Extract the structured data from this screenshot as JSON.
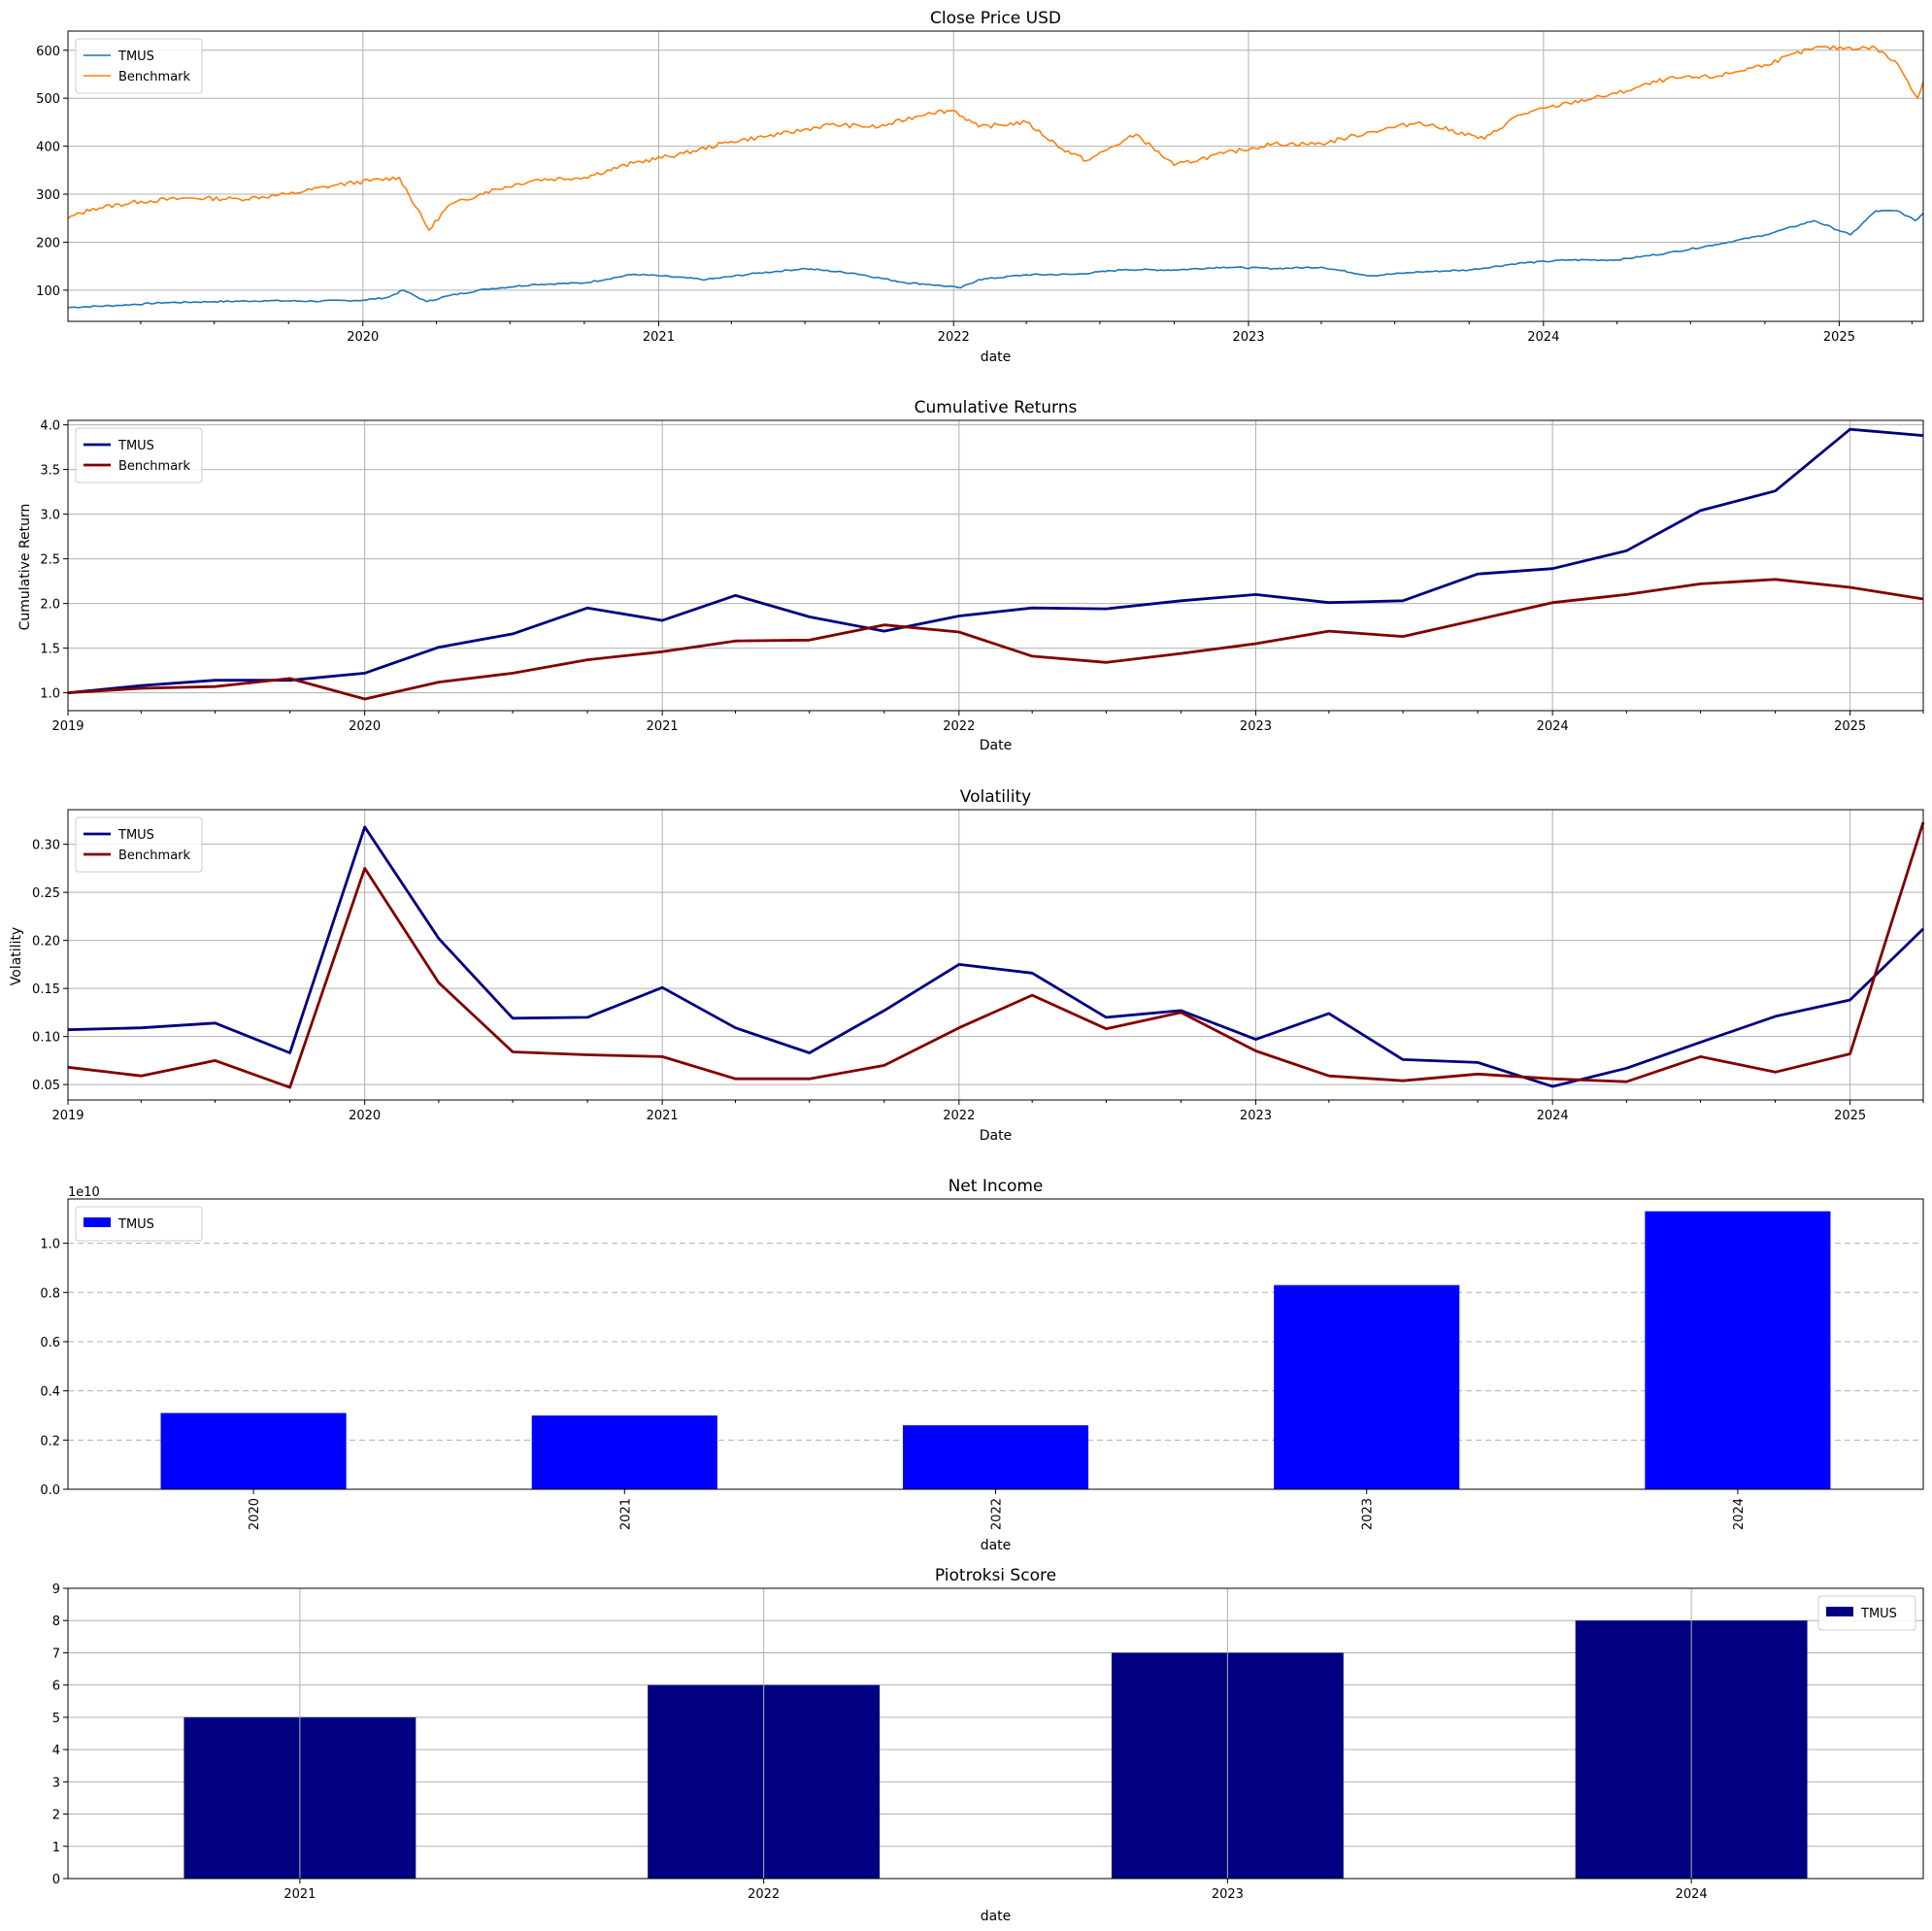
{
  "chart_data": [
    {
      "type": "line",
      "title": "Close Price USD",
      "xlabel": "date",
      "ylabel": "",
      "x_range": [
        "2019-01-01",
        "2025-04-15"
      ],
      "ylim": [
        35,
        640
      ],
      "yticks": [
        100,
        200,
        300,
        400,
        500,
        600
      ],
      "xticks": [
        "2020",
        "2021",
        "2022",
        "2023",
        "2024",
        "2025"
      ],
      "grid": true,
      "legend": "top-left",
      "colors": [
        "#1f77b4",
        "#ff7f0e"
      ],
      "series": [
        {
          "name": "TMUS",
          "points": [
            [
              "2019-01-01",
              64
            ],
            [
              "2019-03-01",
              68
            ],
            [
              "2019-05-01",
              74
            ],
            [
              "2019-07-01",
              76
            ],
            [
              "2019-09-01",
              78
            ],
            [
              "2019-11-01",
              77
            ],
            [
              "2020-01-01",
              79
            ],
            [
              "2020-02-01",
              85
            ],
            [
              "2020-02-20",
              100
            ],
            [
              "2020-03-20",
              76
            ],
            [
              "2020-04-15",
              88
            ],
            [
              "2020-06-01",
              102
            ],
            [
              "2020-08-01",
              112
            ],
            [
              "2020-10-01",
              115
            ],
            [
              "2020-12-01",
              133
            ],
            [
              "2021-01-01",
              130
            ],
            [
              "2021-03-01",
              122
            ],
            [
              "2021-05-01",
              135
            ],
            [
              "2021-07-01",
              145
            ],
            [
              "2021-09-01",
              135
            ],
            [
              "2021-11-01",
              116
            ],
            [
              "2021-12-01",
              112
            ],
            [
              "2022-01-10",
              105
            ],
            [
              "2022-02-01",
              122
            ],
            [
              "2022-04-01",
              132
            ],
            [
              "2022-06-01",
              133
            ],
            [
              "2022-08-01",
              143
            ],
            [
              "2022-10-01",
              142
            ],
            [
              "2022-12-01",
              148
            ],
            [
              "2023-02-01",
              145
            ],
            [
              "2023-04-01",
              148
            ],
            [
              "2023-06-01",
              130
            ],
            [
              "2023-08-01",
              138
            ],
            [
              "2023-10-01",
              142
            ],
            [
              "2023-12-01",
              156
            ],
            [
              "2024-02-01",
              163
            ],
            [
              "2024-04-01",
              163
            ],
            [
              "2024-06-01",
              177
            ],
            [
              "2024-08-01",
              195
            ],
            [
              "2024-10-01",
              215
            ],
            [
              "2024-12-01",
              245
            ],
            [
              "2025-01-15",
              215
            ],
            [
              "2025-02-15",
              265
            ],
            [
              "2025-03-15",
              265
            ],
            [
              "2025-04-05",
              245
            ],
            [
              "2025-04-15",
              260
            ]
          ]
        },
        {
          "name": "Benchmark",
          "points": [
            [
              "2019-01-01",
              250
            ],
            [
              "2019-02-01",
              270
            ],
            [
              "2019-04-01",
              285
            ],
            [
              "2019-06-01",
              292
            ],
            [
              "2019-08-01",
              290
            ],
            [
              "2019-10-01",
              300
            ],
            [
              "2019-12-01",
              320
            ],
            [
              "2020-02-15",
              335
            ],
            [
              "2020-03-23",
              225
            ],
            [
              "2020-04-15",
              275
            ],
            [
              "2020-06-01",
              305
            ],
            [
              "2020-08-01",
              330
            ],
            [
              "2020-10-01",
              335
            ],
            [
              "2020-12-01",
              365
            ],
            [
              "2021-02-01",
              385
            ],
            [
              "2021-04-01",
              410
            ],
            [
              "2021-06-01",
              425
            ],
            [
              "2021-08-01",
              445
            ],
            [
              "2021-10-01",
              440
            ],
            [
              "2021-12-01",
              470
            ],
            [
              "2022-01-01",
              475
            ],
            [
              "2022-02-01",
              440
            ],
            [
              "2022-04-01",
              450
            ],
            [
              "2022-05-15",
              395
            ],
            [
              "2022-06-15",
              370
            ],
            [
              "2022-08-15",
              425
            ],
            [
              "2022-10-01",
              360
            ],
            [
              "2022-12-01",
              385
            ],
            [
              "2023-02-01",
              405
            ],
            [
              "2023-04-01",
              405
            ],
            [
              "2023-06-01",
              430
            ],
            [
              "2023-08-01",
              450
            ],
            [
              "2023-10-20",
              415
            ],
            [
              "2023-12-01",
              465
            ],
            [
              "2024-02-01",
              490
            ],
            [
              "2024-04-01",
              510
            ],
            [
              "2024-06-01",
              540
            ],
            [
              "2024-08-01",
              545
            ],
            [
              "2024-10-01",
              570
            ],
            [
              "2024-12-01",
              605
            ],
            [
              "2025-02-15",
              605
            ],
            [
              "2025-03-15",
              570
            ],
            [
              "2025-04-08",
              500
            ],
            [
              "2025-04-15",
              535
            ]
          ]
        }
      ]
    },
    {
      "type": "line",
      "title": "Cumulative Returns",
      "xlabel": "Date",
      "ylabel": "Cumulative Return",
      "ylim": [
        0.8,
        4.05
      ],
      "yticks": [
        1.0,
        1.5,
        2.0,
        2.5,
        3.0,
        3.5,
        4.0
      ],
      "xticks": [
        "2019",
        "2020",
        "2021",
        "2022",
        "2023",
        "2024",
        "2025"
      ],
      "grid": true,
      "legend": "top-left",
      "colors": [
        "#000080",
        "#800000"
      ],
      "x": [
        "2019-01-01",
        "2019-04-01",
        "2019-07-01",
        "2019-10-01",
        "2020-01-01",
        "2020-04-01",
        "2020-07-01",
        "2020-10-01",
        "2021-01-01",
        "2021-04-01",
        "2021-07-01",
        "2021-10-01",
        "2022-01-01",
        "2022-04-01",
        "2022-07-01",
        "2022-10-01",
        "2023-01-01",
        "2023-04-01",
        "2023-07-01",
        "2023-10-01",
        "2024-01-01",
        "2024-04-01",
        "2024-07-01",
        "2024-10-01",
        "2025-01-01",
        "2025-04-01"
      ],
      "series": [
        {
          "name": "TMUS",
          "values": [
            1.0,
            1.08,
            1.14,
            1.14,
            1.22,
            1.51,
            1.66,
            1.95,
            1.81,
            2.09,
            1.85,
            1.69,
            1.86,
            1.95,
            1.94,
            2.03,
            2.1,
            2.01,
            2.03,
            2.33,
            2.39,
            2.59,
            3.04,
            3.26,
            3.95,
            3.88
          ]
        },
        {
          "name": "Benchmark",
          "values": [
            1.0,
            1.05,
            1.07,
            1.16,
            0.93,
            1.12,
            1.22,
            1.37,
            1.46,
            1.58,
            1.59,
            1.76,
            1.68,
            1.41,
            1.34,
            1.44,
            1.55,
            1.69,
            1.63,
            1.82,
            2.01,
            2.1,
            2.22,
            2.27,
            2.18,
            2.05
          ]
        }
      ]
    },
    {
      "type": "line",
      "title": "Volatility",
      "xlabel": "Date",
      "ylabel": "Volatility",
      "ylim": [
        0.034,
        0.336
      ],
      "yticks": [
        "0.05",
        "0.10",
        "0.15",
        "0.20",
        "0.25",
        "0.30"
      ],
      "xticks": [
        "2019",
        "2020",
        "2021",
        "2022",
        "2023",
        "2024",
        "2025"
      ],
      "grid": true,
      "legend": "top-left",
      "colors": [
        "#000080",
        "#800000"
      ],
      "x": [
        "2019-01-01",
        "2019-04-01",
        "2019-07-01",
        "2019-10-01",
        "2020-01-01",
        "2020-04-01",
        "2020-07-01",
        "2020-10-01",
        "2021-01-01",
        "2021-04-01",
        "2021-07-01",
        "2021-10-01",
        "2022-01-01",
        "2022-04-01",
        "2022-07-01",
        "2022-10-01",
        "2023-01-01",
        "2023-04-01",
        "2023-07-01",
        "2023-10-01",
        "2024-01-01",
        "2024-04-01",
        "2024-07-01",
        "2024-10-01",
        "2025-01-01",
        "2025-04-01"
      ],
      "series": [
        {
          "name": "TMUS",
          "values": [
            0.107,
            0.109,
            0.114,
            0.083,
            0.318,
            0.202,
            0.119,
            0.12,
            0.151,
            0.109,
            0.083,
            0.127,
            0.175,
            0.166,
            0.12,
            0.127,
            0.097,
            0.124,
            0.076,
            0.073,
            0.048,
            0.067,
            0.094,
            0.121,
            0.138,
            0.212
          ]
        },
        {
          "name": "Benchmark",
          "values": [
            0.068,
            0.059,
            0.075,
            0.047,
            0.275,
            0.156,
            0.084,
            0.081,
            0.079,
            0.056,
            0.056,
            0.07,
            0.109,
            0.143,
            0.108,
            0.125,
            0.085,
            0.059,
            0.054,
            0.061,
            0.056,
            0.053,
            0.079,
            0.063,
            0.082,
            0.323
          ]
        }
      ]
    },
    {
      "type": "bar",
      "title": "Net Income",
      "xlabel": "date",
      "ylabel": "",
      "offset_label": "1e10",
      "categories": [
        "2020",
        "2021",
        "2022",
        "2023",
        "2024"
      ],
      "ylim": [
        0,
        11.8
      ],
      "yticks": [
        "0.0",
        "0.2",
        "0.4",
        "0.6",
        "0.8",
        "1.0"
      ],
      "grid": "dashed-horizontal",
      "legend": "top-left",
      "colors": [
        "#0000ff"
      ],
      "series": [
        {
          "name": "TMUS",
          "values": [
            3.1,
            3.0,
            2.6,
            8.3,
            11.3
          ],
          "unit_note": "billions"
        }
      ]
    },
    {
      "type": "bar",
      "title": "Piotroksi Score",
      "xlabel": "date",
      "ylabel": "",
      "categories": [
        "2021",
        "2022",
        "2023",
        "2024"
      ],
      "ylim": [
        0,
        9
      ],
      "yticks": [
        "0",
        "1",
        "2",
        "3",
        "4",
        "5",
        "6",
        "7",
        "8",
        "9"
      ],
      "grid": true,
      "legend": "top-right",
      "colors": [
        "#000080"
      ],
      "series": [
        {
          "name": "TMUS",
          "values": [
            5,
            6,
            7,
            8
          ]
        }
      ]
    }
  ]
}
